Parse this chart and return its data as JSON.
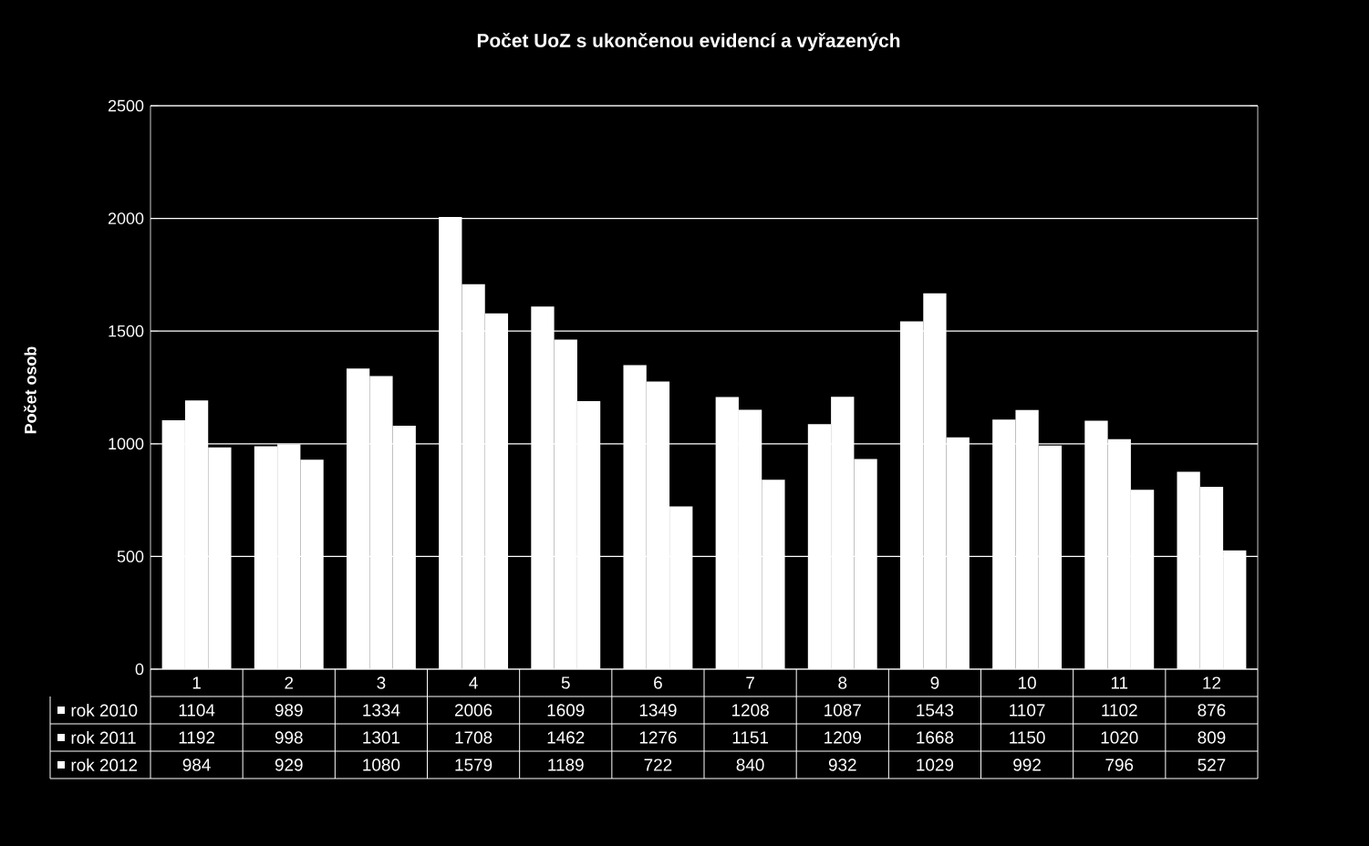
{
  "chart_data": {
    "type": "bar",
    "title": "Počet UoZ s ukončenou evidencí a vyřazených",
    "ylabel": "Počet osob",
    "categories": [
      "1",
      "2",
      "3",
      "4",
      "5",
      "6",
      "7",
      "8",
      "9",
      "10",
      "11",
      "12"
    ],
    "series": [
      {
        "name": "rok 2010",
        "color": "#ffffff",
        "values": [
          1104,
          989,
          1334,
          2006,
          1609,
          1349,
          1208,
          1087,
          1543,
          1107,
          1102,
          876
        ]
      },
      {
        "name": "rok 2011",
        "color": "#ffffff",
        "values": [
          1192,
          998,
          1301,
          1708,
          1462,
          1276,
          1151,
          1209,
          1668,
          1150,
          1020,
          809
        ]
      },
      {
        "name": "rok 2012",
        "color": "#ffffff",
        "values": [
          984,
          929,
          1080,
          1579,
          1189,
          722,
          840,
          932,
          1029,
          992,
          796,
          527
        ]
      }
    ],
    "ylim": [
      0,
      2500
    ],
    "yticks": [
      0,
      500,
      1000,
      1500,
      2000,
      2500
    ],
    "grid": "y",
    "legend": "bottom",
    "data_labels": true
  }
}
